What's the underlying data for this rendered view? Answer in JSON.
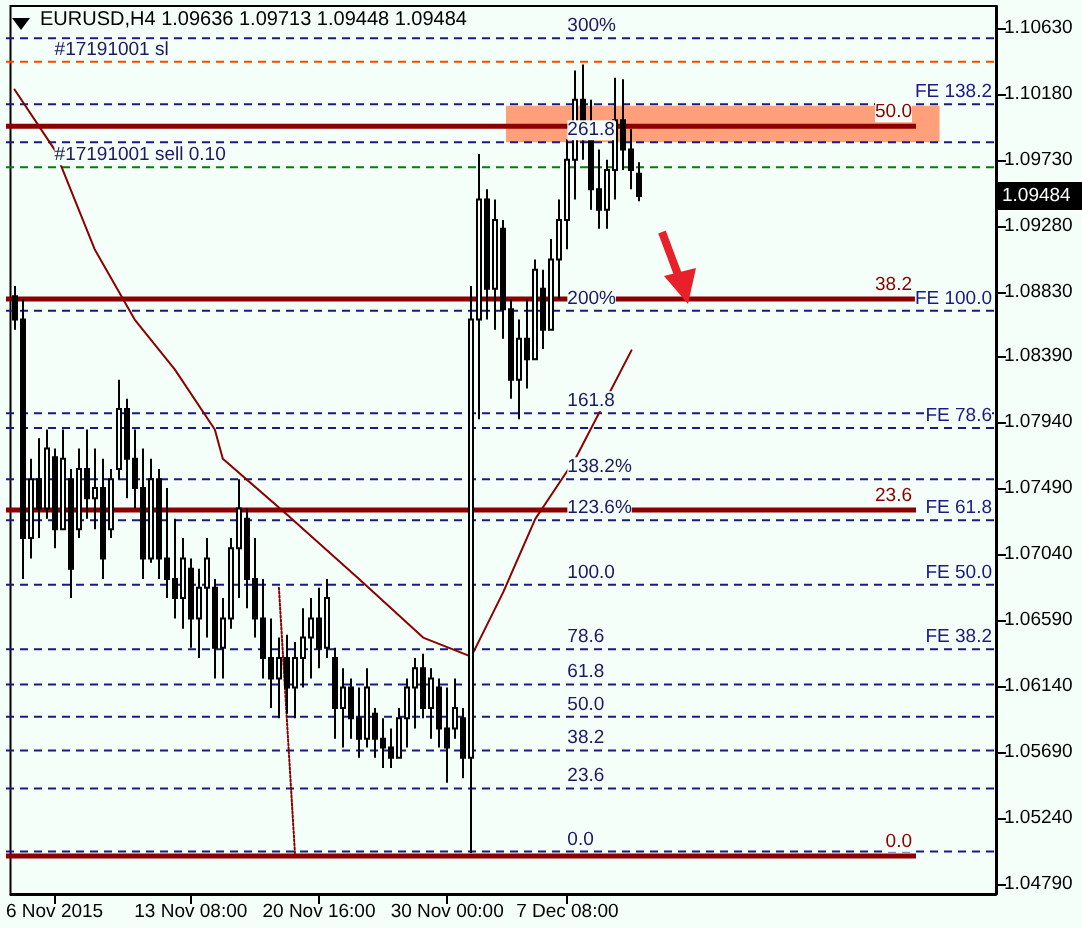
{
  "chart_data": {
    "type": "candlestick",
    "title": "EURUSD,H4 1.09636 1.09713 1.09448 1.09484",
    "color": "#000000",
    "marker": "none",
    "categories": [
      null,
      null,
      null,
      null,
      null,
      "6 Nov 2015",
      null,
      null,
      null,
      null,
      null,
      null,
      null,
      null,
      null,
      null,
      null,
      null,
      null,
      null,
      null,
      null,
      "13 Nov 08:00",
      null,
      null,
      null,
      null,
      null,
      null,
      null,
      null,
      null,
      null,
      null,
      null,
      null,
      null,
      null,
      "20 Nov 16:00",
      null,
      null,
      null,
      null,
      null,
      null,
      null,
      null,
      null,
      null,
      null,
      null,
      null,
      null,
      null,
      "30 Nov 00:00",
      null,
      null,
      null,
      null,
      null,
      null,
      null,
      null,
      null,
      null,
      null,
      null,
      null,
      null,
      "7 Dec 08:00",
      null,
      null,
      null,
      null,
      null,
      null,
      null,
      null,
      null,
      null,
      null,
      null,
      null,
      null,
      null,
      null,
      null,
      null,
      null,
      null,
      null,
      null,
      null,
      null,
      null,
      null,
      null,
      null,
      null,
      null,
      null,
      null,
      null,
      null,
      null,
      null,
      null,
      null,
      null,
      null,
      null,
      null,
      null,
      null,
      null,
      null,
      null,
      null,
      null,
      null,
      null,
      null,
      null
    ],
    "ohlc": [
      [
        1.088,
        1.0887,
        1.0857,
        1.0864
      ],
      [
        1.0864,
        1.0878,
        1.0687,
        1.0715
      ],
      [
        1.0715,
        1.0769,
        1.0701,
        1.0755
      ],
      [
        1.0755,
        1.0783,
        1.0715,
        1.0735
      ],
      [
        1.0735,
        1.0789,
        1.0728,
        1.0776
      ],
      [
        1.077,
        1.0776,
        1.0708,
        1.0721
      ],
      [
        1.0721,
        1.0789,
        1.0721,
        1.0769
      ],
      [
        1.0755,
        1.0762,
        1.0674,
        1.0694
      ],
      [
        1.0721,
        1.0776,
        1.0715,
        1.0762
      ],
      [
        1.0762,
        1.0789,
        1.0728,
        1.0742
      ],
      [
        1.0742,
        1.0776,
        1.0721,
        1.0749
      ],
      [
        1.0749,
        1.0769,
        1.0687,
        1.0701
      ],
      [
        1.0721,
        1.0762,
        1.0715,
        1.0755
      ],
      [
        1.0762,
        1.0823,
        1.0755,
        1.0803
      ],
      [
        1.0803,
        1.081,
        1.0742,
        1.0769
      ],
      [
        1.0769,
        1.0789,
        1.0735,
        1.0749
      ],
      [
        1.0749,
        1.0776,
        1.0687,
        1.0701
      ],
      [
        1.0701,
        1.0769,
        1.0698,
        1.0755
      ],
      [
        1.0755,
        1.0762,
        1.0687,
        1.0701
      ],
      [
        1.0701,
        1.0749,
        1.0674,
        1.0687
      ],
      [
        1.0687,
        1.0728,
        1.066,
        1.0674
      ],
      [
        1.0674,
        1.0715,
        1.0653,
        1.0701
      ],
      [
        1.0694,
        1.0701,
        1.064,
        1.066
      ],
      [
        1.066,
        1.0694,
        1.0633,
        1.0681
      ],
      [
        1.0681,
        1.0715,
        1.0647,
        1.0701
      ],
      [
        1.0681,
        1.0687,
        1.0619,
        1.064
      ],
      [
        1.064,
        1.0674,
        1.0619,
        1.066
      ],
      [
        1.066,
        1.0715,
        1.0653,
        1.0708
      ],
      [
        1.0708,
        1.0755,
        1.0674,
        1.0735
      ],
      [
        1.0728,
        1.0735,
        1.0667,
        1.0687
      ],
      [
        1.0687,
        1.0715,
        1.0647,
        1.066
      ],
      [
        1.066,
        1.0687,
        1.0619,
        1.0633
      ],
      [
        1.0633,
        1.066,
        1.0599,
        1.0619
      ],
      [
        1.0619,
        1.0647,
        1.0592,
        1.0633
      ],
      [
        1.0633,
        1.0649,
        1.0595,
        1.0613
      ],
      [
        1.0613,
        1.0644,
        1.0592,
        1.0633
      ],
      [
        1.0633,
        1.0667,
        1.0613,
        1.0647
      ],
      [
        1.0647,
        1.0674,
        1.0619,
        1.066
      ],
      [
        1.066,
        1.0681,
        1.0626,
        1.064
      ],
      [
        1.064,
        1.0687,
        1.0633,
        1.0674
      ],
      [
        1.0633,
        1.064,
        1.0578,
        1.0599
      ],
      [
        1.0599,
        1.0626,
        1.0572,
        1.0613
      ],
      [
        1.0613,
        1.0619,
        1.0578,
        1.0592
      ],
      [
        1.0592,
        1.0613,
        1.0565,
        1.0578
      ],
      [
        1.0578,
        1.0626,
        1.0572,
        1.0613
      ],
      [
        1.0595,
        1.0599,
        1.0565,
        1.0578
      ],
      [
        1.0578,
        1.0592,
        1.0558,
        1.0572
      ],
      [
        1.0572,
        1.0585,
        1.0558,
        1.0565
      ],
      [
        1.0565,
        1.0599,
        1.0565,
        1.0592
      ],
      [
        1.0592,
        1.0619,
        1.0572,
        1.0613
      ],
      [
        1.0613,
        1.0633,
        1.0585,
        1.0626
      ],
      [
        1.0626,
        1.0636,
        1.0592,
        1.0599
      ],
      [
        1.0599,
        1.0626,
        1.0578,
        1.0619
      ],
      [
        1.0613,
        1.0619,
        1.0572,
        1.0585
      ],
      [
        1.0585,
        1.0613,
        1.0548,
        1.0572
      ],
      [
        1.0585,
        1.0619,
        1.0578,
        1.0599
      ],
      [
        1.0592,
        1.0599,
        1.0551,
        1.0565
      ],
      [
        1.0565,
        1.0887,
        1.05,
        1.0864
      ],
      [
        1.0864,
        1.0977,
        1.0796,
        1.0946
      ],
      [
        1.0946,
        1.0953,
        1.0864,
        1.0885
      ],
      [
        1.0885,
        1.0946,
        1.0857,
        1.0932
      ],
      [
        1.0926,
        1.0932,
        1.0851,
        1.0871
      ],
      [
        1.0871,
        1.0878,
        1.081,
        1.0823
      ],
      [
        1.0823,
        1.0864,
        1.0796,
        1.0851
      ],
      [
        1.0851,
        1.0878,
        1.0817,
        1.0837
      ],
      [
        1.0837,
        1.0905,
        1.0837,
        1.0898
      ],
      [
        1.0885,
        1.0898,
        1.0844,
        1.0857
      ],
      [
        1.0857,
        1.0919,
        1.0857,
        1.0905
      ],
      [
        1.0905,
        1.0946,
        1.0878,
        1.0932
      ],
      [
        1.0932,
        1.0987,
        1.0912,
        1.0973
      ],
      [
        1.0973,
        1.1034,
        1.0946,
        1.1014
      ],
      [
        1.1014,
        1.1038,
        1.0973,
        1.0987
      ],
      [
        1.0987,
        1.1014,
        1.0939,
        1.0953
      ],
      [
        1.0953,
        1.098,
        1.0926,
        1.0939
      ],
      [
        1.0939,
        1.0973,
        1.0926,
        1.0966
      ],
      [
        1.0966,
        1.1029,
        1.0946,
        1.1
      ],
      [
        1.1,
        1.1028,
        1.0966,
        1.098
      ],
      [
        1.098,
        1.0994,
        1.0953,
        1.0966
      ],
      [
        1.09636,
        1.09713,
        1.09448,
        1.09484
      ],
      null,
      null,
      null,
      null,
      null,
      null,
      null,
      null,
      null,
      null,
      null,
      null,
      null,
      null,
      null,
      null,
      null,
      null,
      null,
      null,
      null,
      null,
      null,
      null,
      null,
      null,
      null,
      null,
      null,
      null,
      null,
      null,
      null,
      null,
      null,
      null,
      null,
      null,
      null,
      null,
      null,
      null,
      null,
      null
    ],
    "series": [
      {
        "type": "line",
        "color": "#8b0000",
        "values": [
          1.1021,
          null,
          null,
          null,
          null,
          1.098,
          null,
          null,
          null,
          null,
          1.0912,
          null,
          null,
          null,
          null,
          1.0864,
          null,
          null,
          null,
          null,
          1.083,
          null,
          null,
          null,
          null,
          1.0789,
          1.0769,
          null,
          null,
          null,
          null,
          null,
          null,
          null,
          1.0731,
          null,
          null,
          null,
          null,
          null,
          null,
          null,
          null,
          1.0687,
          null,
          null,
          null,
          null,
          null,
          null,
          null,
          1.0647,
          null,
          null,
          null,
          null,
          null,
          1.0634,
          null,
          null,
          null,
          1.0678,
          null,
          null,
          null,
          1.0728,
          null,
          null,
          null,
          null,
          1.0769,
          null,
          null,
          null,
          null,
          null,
          null,
          1.0843,
          null,
          null,
          null,
          null,
          null,
          null,
          null,
          null,
          null,
          null,
          null,
          null,
          null,
          null,
          null,
          null,
          null,
          null,
          null,
          null,
          null,
          null,
          null,
          null,
          null,
          null,
          null,
          null,
          null,
          null,
          null,
          null,
          null,
          null,
          null,
          null,
          null,
          null,
          null,
          null,
          null,
          null,
          null,
          null,
          null
        ]
      },
      {
        "type": "line",
        "color": "#8b0000",
        "line_style": "dotted",
        "values": [
          null,
          null,
          null,
          null,
          null,
          null,
          null,
          null,
          null,
          null,
          null,
          null,
          null,
          null,
          null,
          null,
          null,
          null,
          null,
          null,
          null,
          null,
          null,
          null,
          null,
          null,
          null,
          null,
          null,
          null,
          null,
          null,
          null,
          1.0681,
          null,
          1.05,
          null,
          null,
          null,
          null,
          null,
          null,
          null,
          null,
          null,
          null,
          null,
          null,
          null,
          null,
          null,
          null,
          null,
          null,
          null,
          null,
          null,
          null,
          null,
          null,
          null,
          null,
          null,
          null,
          null,
          null,
          null,
          null,
          null,
          null,
          null,
          null,
          null,
          null,
          null,
          null,
          null,
          null,
          null,
          null,
          null,
          null,
          null,
          null,
          null,
          null,
          null,
          null,
          null,
          null,
          null,
          null,
          null,
          null,
          null,
          null,
          null,
          null,
          null,
          null,
          null,
          null,
          null,
          null,
          null,
          null,
          null,
          null,
          null,
          null,
          null,
          null,
          null,
          null,
          null,
          null,
          null,
          null,
          null,
          null,
          null,
          null,
          null
        ]
      }
    ],
    "ylim": [
      1.0472,
      1.1078
    ],
    "yticks": [
      {
        "value": 1.0479,
        "label": "1.04790"
      },
      {
        "value": 1.0524,
        "label": "1.05240"
      },
      {
        "value": 1.0569,
        "label": "1.05690"
      },
      {
        "value": 1.0614,
        "label": "1.06140"
      },
      {
        "value": 1.0659,
        "label": "1.06590"
      },
      {
        "value": 1.0704,
        "label": "1.07040"
      },
      {
        "value": 1.0749,
        "label": "1.07490"
      },
      {
        "value": 1.0794,
        "label": "1.07940"
      },
      {
        "value": 1.0839,
        "label": "1.08390"
      },
      {
        "value": 1.0883,
        "label": "1.08830"
      },
      {
        "value": 1.0928,
        "label": "1.09280"
      },
      {
        "value": 1.0973,
        "label": "1.09730"
      },
      {
        "value": 1.1018,
        "label": "1.10180"
      },
      {
        "value": 1.1063,
        "label": "1.10630"
      }
    ],
    "ref_lines": [
      {
        "axis": "y",
        "value": 1.104,
        "label": null,
        "color": "#ff4500",
        "line_style": "dashed"
      },
      {
        "axis": "y",
        "value": 1.0968,
        "label": null,
        "color": "#008000",
        "line_style": "dashed"
      },
      {
        "axis": "y",
        "value": 1.1011,
        "label": "FE 138.2",
        "color": "#1a1a80",
        "line_style": "dashed"
      },
      {
        "axis": "y",
        "value": 1.0996,
        "label": null,
        "color": "#8b0000",
        "line_style": "solid"
      },
      {
        "axis": "y",
        "value": 1.0878,
        "label": null,
        "color": "#8b0000",
        "line_style": "solid"
      },
      {
        "axis": "y",
        "value": 1.087,
        "label": "FE 100.0",
        "color": "#1a1a80",
        "line_style": "dashed"
      },
      {
        "axis": "y",
        "value": 1.079,
        "label": "FE 78.6",
        "color": "#1a1a80",
        "line_style": "dashed"
      },
      {
        "axis": "y",
        "value": 1.0734,
        "label": null,
        "color": "#8b0000",
        "line_style": "solid"
      },
      {
        "axis": "y",
        "value": 1.0727,
        "label": "FE 61.8",
        "color": "#1a1a80",
        "line_style": "dashed"
      },
      {
        "axis": "y",
        "value": 1.0683,
        "label": "FE 50.0",
        "color": "#1a1a80",
        "line_style": "dashed"
      },
      {
        "axis": "y",
        "value": 1.0639,
        "label": "FE 38.2",
        "color": "#1a1a80",
        "line_style": "dashed"
      },
      {
        "axis": "y",
        "value": 1.0498,
        "label": null,
        "color": "#8b0000",
        "line_style": "solid"
      },
      {
        "axis": "y",
        "value": 1.1056,
        "label": null,
        "color": "#1a1a80",
        "line_style": "dashed"
      },
      {
        "axis": "y",
        "value": 1.0985,
        "label": null,
        "color": "#1a1a80",
        "line_style": "dashed"
      },
      {
        "axis": "y",
        "value": 1.08,
        "label": null,
        "color": "#1a1a80",
        "line_style": "dashed"
      },
      {
        "axis": "y",
        "value": 1.0755,
        "label": null,
        "color": "#1a1a80",
        "line_style": "dashed"
      },
      {
        "axis": "y",
        "value": 1.0615,
        "label": null,
        "color": "#1a1a80",
        "line_style": "dashed"
      },
      {
        "axis": "y",
        "value": 1.0593,
        "label": null,
        "color": "#1a1a80",
        "line_style": "dashed"
      },
      {
        "axis": "y",
        "value": 1.057,
        "label": null,
        "color": "#1a1a80",
        "line_style": "dashed"
      },
      {
        "axis": "y",
        "value": 1.0544,
        "label": null,
        "color": "#1a1a80",
        "line_style": "dashed"
      },
      {
        "axis": "y",
        "value": 1.0501,
        "label": null,
        "color": "#1a1a80",
        "line_style": "dashed"
      }
    ],
    "bands": [
      {
        "axis": "y",
        "from": 1.0985,
        "to": 1.101,
        "color": "#ffa07a"
      }
    ],
    "annotations": [
      {
        "text": "#17191001 sl",
        "x": "6 Nov 2015",
        "y": 1.104
      },
      {
        "text": "#17191001 sell 0.10",
        "x": "6 Nov 2015",
        "y": 1.0968
      },
      {
        "text": "300%",
        "x": "7 Dec 08:00",
        "y": 1.1056
      },
      {
        "text": "261.8",
        "x": "7 Dec 08:00",
        "y": 1.0985
      },
      {
        "text": "200%",
        "x": "7 Dec 08:00",
        "y": 1.087
      },
      {
        "text": "161.8",
        "x": "7 Dec 08:00",
        "y": 1.08
      },
      {
        "text": "138.2%",
        "x": "7 Dec 08:00",
        "y": 1.0755
      },
      {
        "text": "123.6%",
        "x": "7 Dec 08:00",
        "y": 1.0727
      },
      {
        "text": "100.0",
        "x": "7 Dec 08:00",
        "y": 1.0683
      },
      {
        "text": "78.6",
        "x": "7 Dec 08:00",
        "y": 1.0639
      },
      {
        "text": "61.8",
        "x": "7 Dec 08:00",
        "y": 1.0615
      },
      {
        "text": "50.0",
        "x": "7 Dec 08:00",
        "y": 1.0593
      },
      {
        "text": "38.2",
        "x": "7 Dec 08:00",
        "y": 1.057
      },
      {
        "text": "23.6",
        "x": "7 Dec 08:00",
        "y": 1.0544
      },
      {
        "text": "0.0",
        "x": "7 Dec 08:00",
        "y": 1.0501
      },
      {
        "text": "50.0",
        "y": 1.0996
      },
      {
        "text": "38.2",
        "y": 1.0878
      },
      {
        "text": "23.6",
        "y": 1.0734
      },
      {
        "text": "0.0",
        "y": 1.0498
      },
      {
        "text": "1.09484",
        "y": 1.09484
      }
    ]
  }
}
